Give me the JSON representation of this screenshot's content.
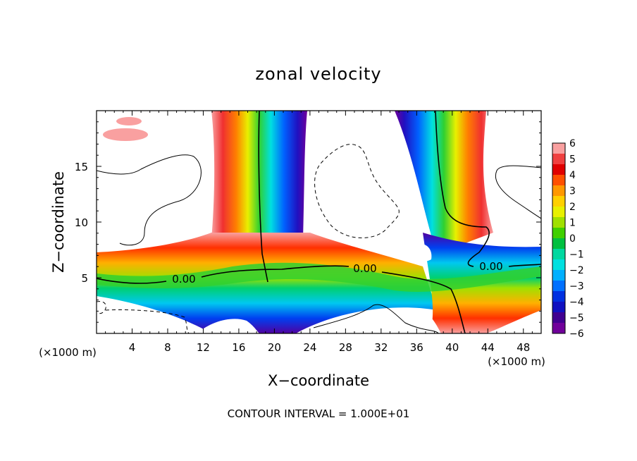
{
  "chart_data": {
    "type": "heatmap",
    "title": "zonal velocity",
    "xlabel": "X−coordinate",
    "ylabel": "Z−coordinate",
    "x_unit_left": "(×1000 m)",
    "x_unit_right": "(×1000 m)",
    "xlim": [
      0,
      50
    ],
    "ylim": [
      0,
      20
    ],
    "x_ticks": [
      4,
      8,
      12,
      16,
      20,
      24,
      28,
      32,
      36,
      40,
      44,
      48
    ],
    "y_ticks": [
      5,
      10,
      15
    ],
    "colorbar": {
      "labels": [
        "6",
        "5",
        "4",
        "3",
        "2",
        "1",
        "0",
        "−1",
        "−2",
        "−3",
        "−4",
        "−5",
        "−6"
      ],
      "range": [
        -6,
        6
      ],
      "colors": [
        "#f9a0a0",
        "#f04040",
        "#e00000",
        "#ff5000",
        "#ff9800",
        "#ffd000",
        "#e8f000",
        "#a0e000",
        "#40d000",
        "#00c040",
        "#00d8a0",
        "#00e0e0",
        "#00b0ff",
        "#0070ff",
        "#0030e0",
        "#1010c0",
        "#400090",
        "#70009a"
      ]
    },
    "contour_labels": [
      {
        "text": "0.00",
        "x": 10,
        "z": 4.9
      },
      {
        "text": "0.00",
        "x": 30,
        "z": 5.6
      },
      {
        "text": "0.00",
        "x": 44.5,
        "z": 6.0
      }
    ],
    "footer": "CONTOUR INTERVAL = 1.000E+01",
    "grid": false
  }
}
